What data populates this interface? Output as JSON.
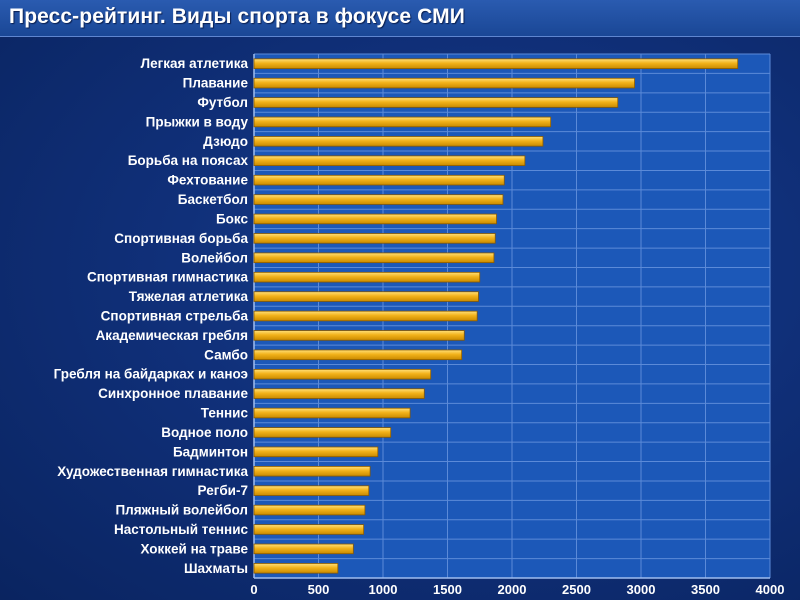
{
  "title": "Пресс-рейтинг. Виды спорта в фокусе СМИ",
  "colors": {
    "bar": "#f2b21a",
    "bar_edge": "#8a5a00",
    "plot_bg": "#1c58b8",
    "grid": "#5b8ad8",
    "text": "#ffffff"
  },
  "chart_data": {
    "type": "bar",
    "orientation": "horizontal",
    "title": "Пресс-рейтинг. Виды спорта в фокусе СМИ",
    "xlabel": "",
    "ylabel": "",
    "xlim": [
      0,
      4000
    ],
    "xticks": [
      0,
      500,
      1000,
      1500,
      2000,
      2500,
      3000,
      3500,
      4000
    ],
    "grid": true,
    "categories": [
      "Легкая атлетика",
      "Плавание",
      "Футбол",
      "Прыжки в воду",
      "Дзюдо",
      "Борьба на поясах",
      "Фехтование",
      "Баскетбол",
      "Бокс",
      "Спортивная борьба",
      "Волейбол",
      "Спортивная гимнастика",
      "Тяжелая атлетика",
      "Спортивная стрельба",
      "Академическая гребля",
      "Самбо",
      "Гребля на байдарках и каноэ",
      "Синхронное плавание",
      "Теннис",
      "Водное поло",
      "Бадминтон",
      "Художественная гимнастика",
      "Регби-7",
      "Пляжный волейбол",
      "Настольный теннис",
      "Хоккей на траве",
      "Шахматы"
    ],
    "values": [
      3750,
      2950,
      2820,
      2300,
      2240,
      2100,
      1940,
      1930,
      1880,
      1870,
      1860,
      1750,
      1740,
      1730,
      1630,
      1610,
      1370,
      1320,
      1210,
      1060,
      960,
      900,
      890,
      860,
      850,
      770,
      650
    ]
  }
}
